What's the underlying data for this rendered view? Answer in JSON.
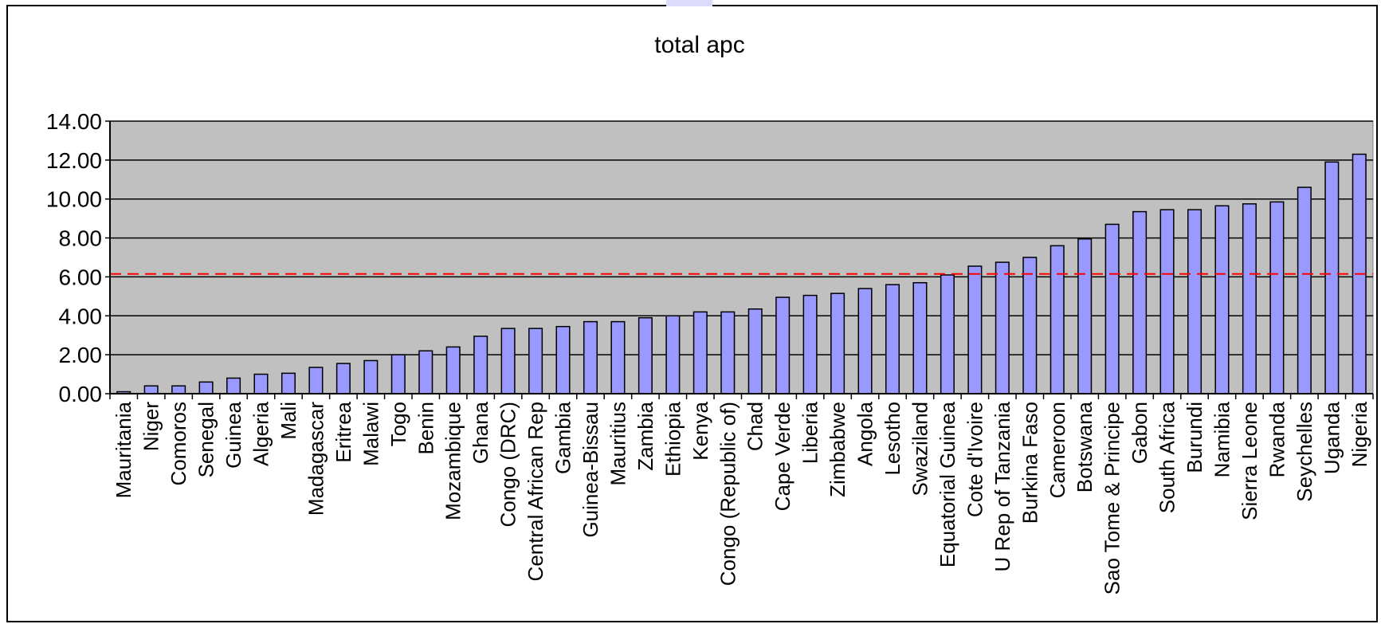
{
  "chart_data": {
    "type": "bar",
    "title": "total apc",
    "xlabel": "",
    "ylabel": "",
    "ylim": [
      0,
      14
    ],
    "yticks": [
      "0.00",
      "2.00",
      "4.00",
      "6.00",
      "8.00",
      "10.00",
      "12.00",
      "14.00"
    ],
    "grid": true,
    "legend": "none",
    "reference_line": {
      "value": 6.15,
      "style": "dashed"
    },
    "categories": [
      "Mauritania",
      "Niger",
      "Comoros",
      "Senegal",
      "Guinea",
      "Algeria",
      "Mali",
      "Madagascar",
      "Eritrea",
      "Malawi",
      "Togo",
      "Benin",
      "Mozambique",
      "Ghana",
      "Congo (DRC)",
      "Central African Rep",
      "Gambia",
      "Guinea-Bissau",
      "Mauritius",
      "Zambia",
      "Ethiopia",
      "Kenya",
      "Congo (Republic of)",
      "Chad",
      "Cape Verde",
      "Liberia",
      "Zimbabwe",
      "Angola",
      "Lesotho",
      "Swaziland",
      "Equatorial Guinea",
      "Cote d'Ivoire",
      "U Rep of Tanzania",
      "Burkina Faso",
      "Cameroon",
      "Botswana",
      "Sao Tome & Principe",
      "Gabon",
      "South Africa",
      "Burundi",
      "Namibia",
      "Sierra Leone",
      "Rwanda",
      "Seychelles",
      "Uganda",
      "Nigeria"
    ],
    "values": [
      0.1,
      0.4,
      0.4,
      0.6,
      0.8,
      1.0,
      1.05,
      1.35,
      1.55,
      1.7,
      2.0,
      2.2,
      2.4,
      2.95,
      3.35,
      3.35,
      3.45,
      3.7,
      3.7,
      3.9,
      4.0,
      4.2,
      4.2,
      4.35,
      4.95,
      5.05,
      5.15,
      5.4,
      5.6,
      5.7,
      6.1,
      6.55,
      6.75,
      7.0,
      7.6,
      7.95,
      8.7,
      9.35,
      9.45,
      9.45,
      9.65,
      9.75,
      9.85,
      10.6,
      11.9,
      12.3
    ],
    "colors": {
      "bar": "#9999ff",
      "plot_background": "#c0c0c0",
      "grid": "#000000",
      "reference_line": "#ff0000"
    }
  }
}
